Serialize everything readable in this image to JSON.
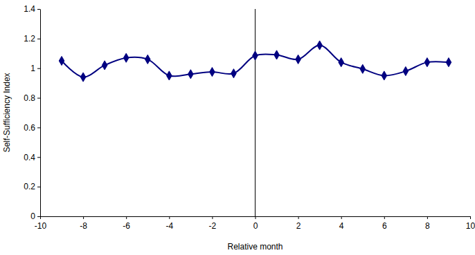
{
  "chart_data": {
    "type": "line",
    "x_label": "Relative month",
    "y_label": "Self-Sufficiency Index",
    "x": [
      -9,
      -8,
      -7,
      -6,
      -5,
      -4,
      -3,
      -2,
      -1,
      0,
      1,
      2,
      3,
      4,
      5,
      6,
      7,
      8,
      9
    ],
    "values": [
      1.05,
      0.94,
      1.02,
      1.07,
      1.06,
      0.95,
      0.96,
      0.975,
      0.965,
      1.085,
      1.09,
      1.06,
      1.155,
      1.04,
      0.995,
      0.95,
      0.98,
      1.04,
      1.04
    ],
    "color": "#000080",
    "marker": "diamond",
    "line_style": "smooth",
    "vline": 0,
    "xlim": [
      -10,
      10
    ],
    "xticks": [
      -10,
      -8,
      -6,
      -4,
      -2,
      0,
      2,
      4,
      6,
      8,
      10
    ],
    "ylim": [
      0,
      1.4
    ],
    "yticks": [
      0,
      0.2,
      0.4,
      0.6,
      0.8,
      1,
      1.2,
      1.4
    ],
    "grid": false
  }
}
